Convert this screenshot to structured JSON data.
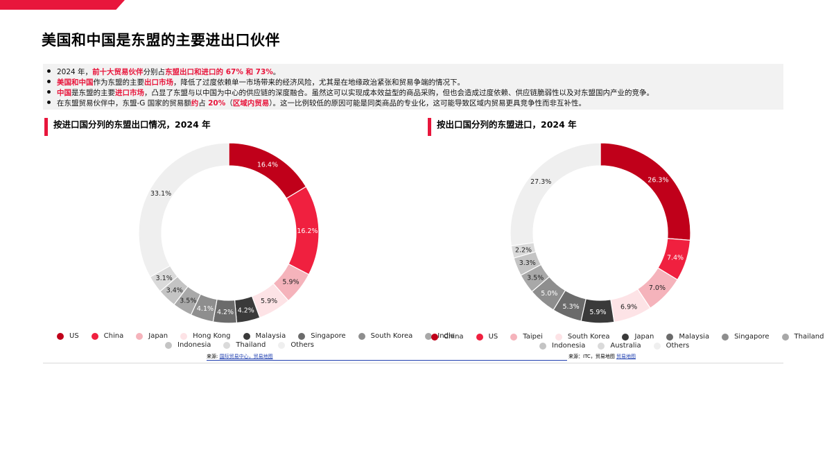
{
  "page": {
    "title": "美国和中国是东盟的主要进出口伙伴",
    "colors": {
      "accent": "#e8163c",
      "bullet_bg": "#f2f2f2"
    }
  },
  "bullets": [
    {
      "segments": [
        {
          "text": "2024 年，",
          "hl": false
        },
        {
          "text": "前十大贸易伙伴",
          "hl": true
        },
        {
          "text": "分别占",
          "hl": false
        },
        {
          "text": "东盟出口和进口的 67% 和 73%",
          "hl": true
        },
        {
          "text": "。",
          "hl": false
        }
      ]
    },
    {
      "segments": [
        {
          "text": "美国和中国",
          "hl": true
        },
        {
          "text": "作为东盟的主要",
          "hl": false
        },
        {
          "text": "出口市场",
          "hl": true
        },
        {
          "text": "，降低了过度依赖单一市场带来的经济风险，尤其是在地缘政治紧张和贸易争端的情况下。",
          "hl": false
        }
      ]
    },
    {
      "segments": [
        {
          "text": "中国",
          "hl": true
        },
        {
          "text": "是东盟的主要",
          "hl": false
        },
        {
          "text": "进口市场",
          "hl": true
        },
        {
          "text": "，凸显了东盟与以中国为中心的供应链的深度融合。虽然这可以实现成本效益型的商品采购，但也会造成过度依赖、供应链脆弱性以及对东盟国内产业的竞争。",
          "hl": false
        }
      ]
    },
    {
      "segments": [
        {
          "text": "在东盟贸易伙伴中，东盟-G 国家的贸易额",
          "hl": false
        },
        {
          "text": "约",
          "hl": true
        },
        {
          "text": "占 ",
          "hl": false
        },
        {
          "text": "20%",
          "hl": true
        },
        {
          "text": "（",
          "hl": false
        },
        {
          "text": "区域内贸易",
          "hl": true
        },
        {
          "text": "）。这一比例较低的原因可能是同类商品的专业化，这可能导致区域内贸易更具竞争性而非互补性。",
          "hl": false
        }
      ]
    }
  ],
  "chart_data": [
    {
      "type": "pie",
      "variant": "donut",
      "title": "按进口国分列的东盟出口情况，2024 年",
      "categories": [
        "US",
        "China",
        "Japan",
        "Hong Kong",
        "Malaysia",
        "Singapore",
        "South Korea",
        "India",
        "Indonesia",
        "Thailand",
        "Others"
      ],
      "values": [
        16.4,
        16.2,
        5.9,
        5.9,
        4.2,
        4.2,
        4.1,
        3.5,
        3.4,
        3.1,
        33.1
      ],
      "labels": [
        "16.4%",
        "16.2%",
        "5.9%",
        "5.9%",
        "4.2%",
        "4.2%",
        "4.1%",
        "3.5%",
        "3.4%",
        "3.1%",
        "33.1%"
      ],
      "colors": [
        "#c0001a",
        "#f0203f",
        "#f5b3bb",
        "#fde3e6",
        "#3a3a3a",
        "#6b6b6b",
        "#8e8e8e",
        "#a8a8a8",
        "#c4c4c4",
        "#dadada",
        "#efefef"
      ],
      "label_colors": [
        "#fff",
        "#fff",
        "#222",
        "#222",
        "#fff",
        "#fff",
        "#fff",
        "#222",
        "#222",
        "#222",
        "#222"
      ],
      "legend_placement": "bottom",
      "source": {
        "prefix": "来源: ",
        "link": "国际贸易中心，贸易地图"
      }
    },
    {
      "type": "pie",
      "variant": "donut",
      "title": "按出口国分列的东盟进口，2024 年",
      "categories": [
        "China",
        "US",
        "Taipei",
        "South Korea",
        "Japan",
        "Malaysia",
        "Singapore",
        "Thailand",
        "Indonesia",
        "Australia",
        "Others"
      ],
      "values": [
        26.3,
        7.4,
        7.0,
        6.9,
        5.9,
        5.3,
        5.0,
        3.5,
        3.3,
        2.2,
        27.3
      ],
      "labels": [
        "26.3%",
        "7.4%",
        "7.0%",
        "6.9%",
        "5.9%",
        "5.3%",
        "5.0%",
        "3.5%",
        "3.3%",
        "2.2%",
        "27.3%"
      ],
      "colors": [
        "#c0001a",
        "#f0203f",
        "#f5b3bb",
        "#fde3e6",
        "#3a3a3a",
        "#6b6b6b",
        "#8e8e8e",
        "#a8a8a8",
        "#c4c4c4",
        "#dadada",
        "#efefef"
      ],
      "label_colors": [
        "#fff",
        "#fff",
        "#222",
        "#222",
        "#fff",
        "#fff",
        "#fff",
        "#222",
        "#222",
        "#222",
        "#222"
      ],
      "legend_placement": "bottom",
      "source": {
        "prefix": "来源：ITC，贸易地图 ",
        "link": "贸易地图"
      }
    }
  ]
}
